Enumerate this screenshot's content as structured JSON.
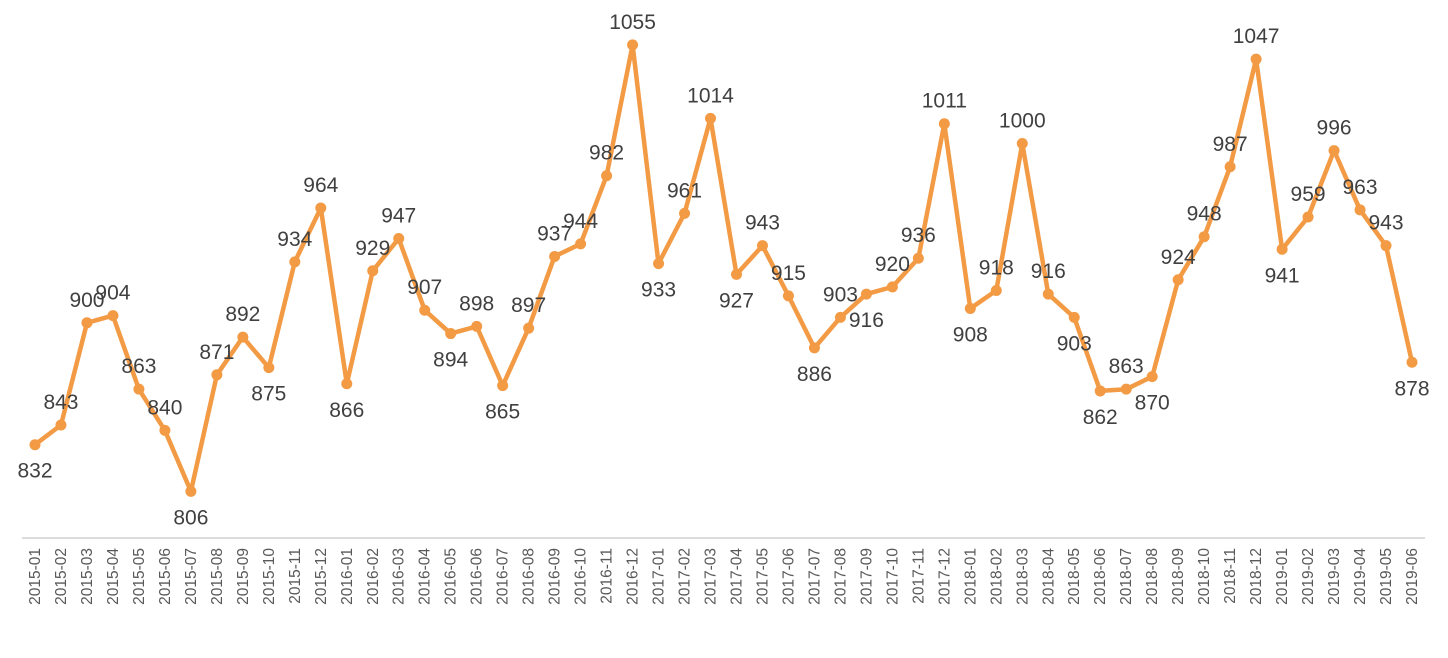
{
  "chart_data": {
    "type": "line",
    "title": "",
    "xlabel": "",
    "ylabel": "",
    "ylim": [
      780,
      1080
    ],
    "grid": false,
    "legend": "none",
    "line_color": "#F39A45",
    "categories": [
      "2015-01",
      "2015-02",
      "2015-03",
      "2015-04",
      "2015-05",
      "2015-06",
      "2015-07",
      "2015-08",
      "2015-09",
      "2015-10",
      "2015-11",
      "2015-12",
      "2016-01",
      "2016-02",
      "2016-03",
      "2016-04",
      "2016-05",
      "2016-06",
      "2016-07",
      "2016-08",
      "2016-09",
      "2016-10",
      "2016-11",
      "2016-12",
      "2017-01",
      "2017-02",
      "2017-03",
      "2017-04",
      "2017-05",
      "2017-06",
      "2017-07",
      "2017-08",
      "2017-09",
      "2017-10",
      "2017-11",
      "2017-12",
      "2018-01",
      "2018-02",
      "2018-03",
      "2018-04",
      "2018-05",
      "2018-06",
      "2018-07",
      "2018-08",
      "2018-09",
      "2018-10",
      "2018-11",
      "2018-12",
      "2019-01",
      "2019-02",
      "2019-03",
      "2019-04",
      "2019-05",
      "2019-06"
    ],
    "values": [
      832,
      843,
      900,
      904,
      863,
      840,
      806,
      871,
      892,
      875,
      934,
      964,
      866,
      929,
      947,
      907,
      894,
      898,
      865,
      897,
      937,
      944,
      982,
      1055,
      933,
      961,
      1014,
      927,
      943,
      915,
      886,
      903,
      916,
      920,
      936,
      1011,
      908,
      918,
      1000,
      916,
      903,
      862,
      863,
      870,
      924,
      948,
      987,
      1047,
      941,
      959,
      996,
      963,
      943,
      878
    ],
    "label_pos": [
      "below",
      "above",
      "above",
      "above",
      "above",
      "above",
      "below",
      "above",
      "above",
      "below",
      "above",
      "above",
      "below",
      "above",
      "above",
      "above",
      "below",
      "above",
      "below",
      "above",
      "above",
      "above",
      "above",
      "above",
      "below",
      "above",
      "above",
      "below",
      "above",
      "above",
      "below",
      "above",
      "below",
      "above",
      "above",
      "above",
      "below",
      "above",
      "above",
      "above",
      "below",
      "below",
      "above",
      "below",
      "above",
      "above",
      "above",
      "above",
      "below",
      "above",
      "above",
      "above",
      "above",
      "below"
    ]
  }
}
